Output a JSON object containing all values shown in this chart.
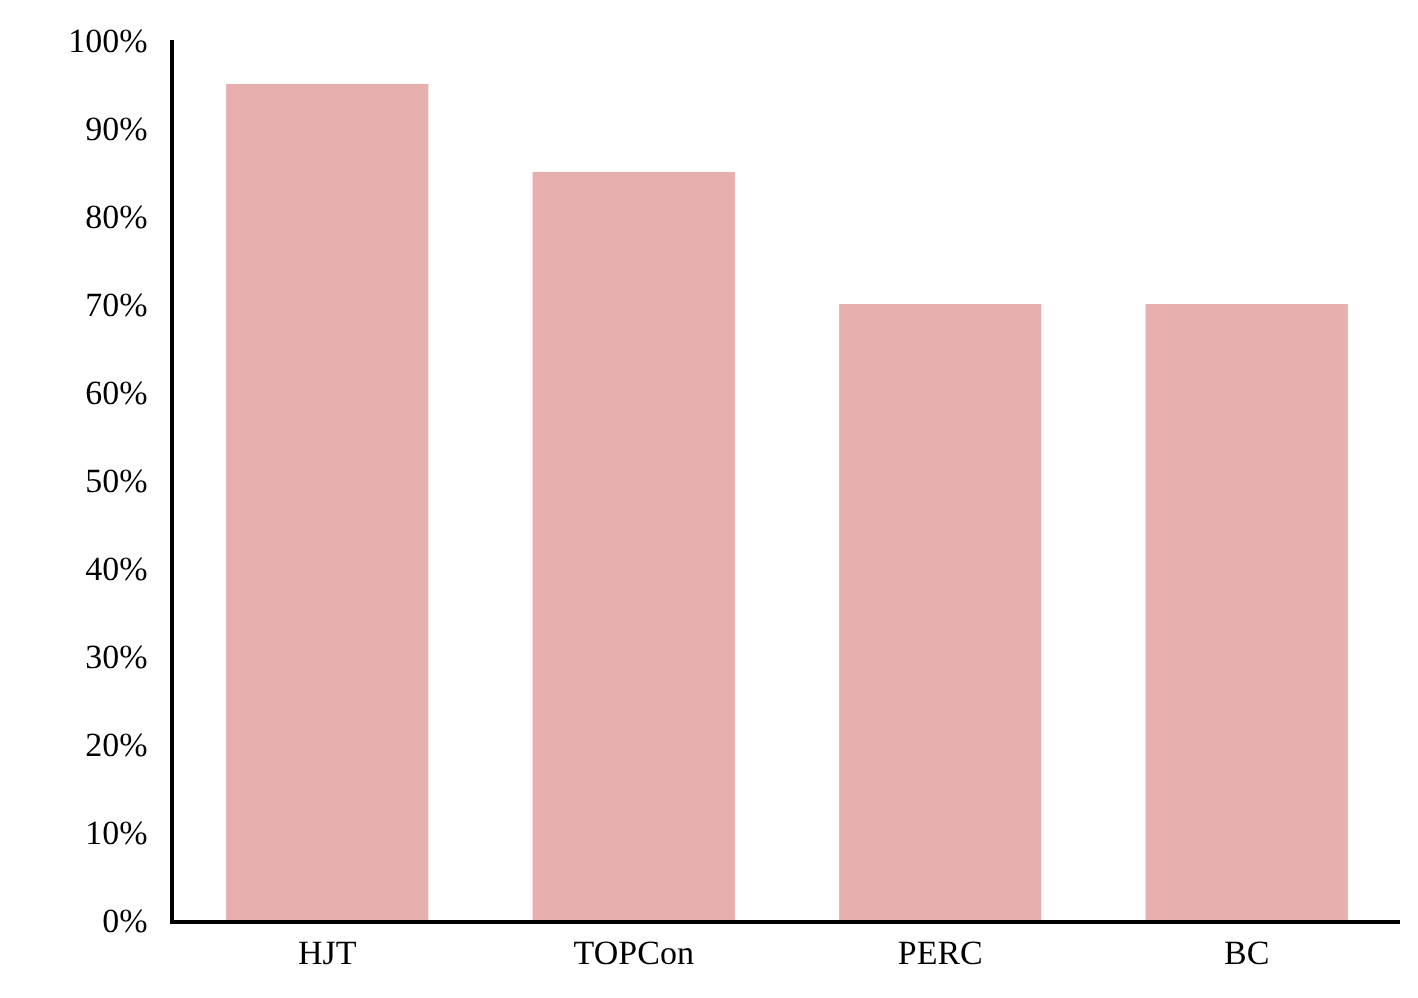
{
  "chart_data": {
    "type": "bar",
    "categories": [
      "HJT",
      "TOPCon",
      "PERC",
      "BC"
    ],
    "values": [
      95,
      85,
      70,
      70
    ],
    "color": "#e8afaf",
    "ylim": [
      0,
      100
    ],
    "yticks": [
      {
        "value": 0,
        "label": "0%"
      },
      {
        "value": 10,
        "label": "10%"
      },
      {
        "value": 20,
        "label": "20%"
      },
      {
        "value": 30,
        "label": "30%"
      },
      {
        "value": 40,
        "label": "40%"
      },
      {
        "value": 50,
        "label": "50%"
      },
      {
        "value": 60,
        "label": "60%"
      },
      {
        "value": 70,
        "label": "70%"
      },
      {
        "value": 80,
        "label": "80%"
      },
      {
        "value": 90,
        "label": "90%"
      },
      {
        "value": 100,
        "label": "100%"
      }
    ]
  }
}
